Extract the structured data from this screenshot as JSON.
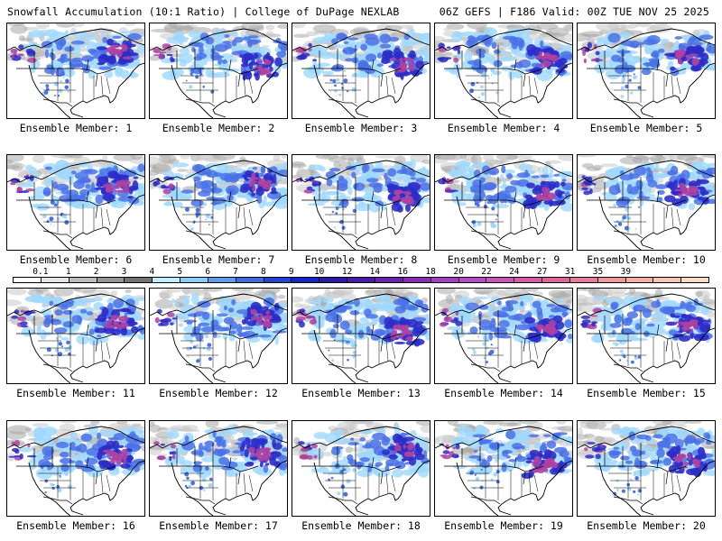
{
  "header": {
    "title_left": "Snowfall Accumulation (10:1 Ratio) | College of DuPage NEXLAB",
    "title_right": "06Z GEFS | F186 Valid: 00Z TUE NOV 25 2025"
  },
  "members": [
    {
      "label": "Ensemble Member: 1"
    },
    {
      "label": "Ensemble Member: 2"
    },
    {
      "label": "Ensemble Member: 3"
    },
    {
      "label": "Ensemble Member: 4"
    },
    {
      "label": "Ensemble Member: 5"
    },
    {
      "label": "Ensemble Member: 6"
    },
    {
      "label": "Ensemble Member: 7"
    },
    {
      "label": "Ensemble Member: 8"
    },
    {
      "label": "Ensemble Member: 9"
    },
    {
      "label": "Ensemble Member: 10"
    },
    {
      "label": "Ensemble Member: 11"
    },
    {
      "label": "Ensemble Member: 12"
    },
    {
      "label": "Ensemble Member: 13"
    },
    {
      "label": "Ensemble Member: 14"
    },
    {
      "label": "Ensemble Member: 15"
    },
    {
      "label": "Ensemble Member: 16"
    },
    {
      "label": "Ensemble Member: 17"
    },
    {
      "label": "Ensemble Member: 18"
    },
    {
      "label": "Ensemble Member: 19"
    },
    {
      "label": "Ensemble Member: 20"
    }
  ],
  "colorbar": {
    "ticks": [
      "0.1",
      "1",
      "2",
      "3",
      "4",
      "5",
      "6",
      "7",
      "8",
      "9",
      "10",
      "12",
      "14",
      "16",
      "18",
      "20",
      "22",
      "24",
      "27",
      "31",
      "35",
      "39"
    ],
    "colors": [
      "#ffffff",
      "#e6e6e6",
      "#bdbdbd",
      "#969696",
      "#737373",
      "#bfefff",
      "#87cefa",
      "#5c9ded",
      "#3a6ce0",
      "#2244d6",
      "#1028c8",
      "#2a1aa8",
      "#4a1aa8",
      "#6a22b0",
      "#8a2ab8",
      "#a23cc0",
      "#b84ac8",
      "#cc54b8",
      "#d85aa6",
      "#e0649a",
      "#e87a9a",
      "#f09898",
      "#f5b0a0",
      "#f8c6ae",
      "#fadcc4"
    ]
  },
  "legend_colors": {
    "terrain": "#b4b4b4",
    "light": "#9fd8ff",
    "moderate": "#4a72e8",
    "heavy": "#2c2cc8",
    "extreme": "#b040a0"
  }
}
